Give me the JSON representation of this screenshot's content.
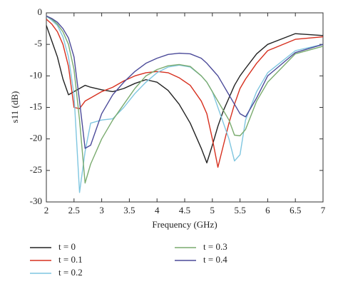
{
  "chart_data": {
    "type": "line",
    "xlabel": "Frequency (GHz)",
    "ylabel": "s11 (dB)",
    "x": [
      2,
      2.1,
      2.2,
      2.3,
      2.4,
      2.5,
      2.6,
      2.7,
      2.8,
      3,
      3.2,
      3.4,
      3.6,
      3.8,
      4,
      4.2,
      4.4,
      4.6,
      4.8,
      4.9,
      5,
      5.1,
      5.2,
      5.3,
      5.4,
      5.5,
      5.6,
      5.8,
      6,
      6.5,
      7
    ],
    "series": [
      {
        "name": "t = 0",
        "color": "#222222",
        "values": [
          -2,
          -4.5,
          -7,
          -10.5,
          -13,
          -12.5,
          -12,
          -11.5,
          -11.8,
          -12.2,
          -12.5,
          -12,
          -11.2,
          -10.6,
          -11,
          -12.3,
          -14.5,
          -17.5,
          -21.5,
          -23.8,
          -21,
          -18,
          -15.5,
          -13.5,
          -11.5,
          -10,
          -8.8,
          -6.5,
          -5,
          -3.3,
          -3.6
        ]
      },
      {
        "name": "t = 0.1",
        "color": "#d7301f",
        "values": [
          -1,
          -1.8,
          -3,
          -5,
          -8.5,
          -15,
          -15.2,
          -14,
          -13.5,
          -12.5,
          -11.8,
          -10.8,
          -10,
          -9.5,
          -9.3,
          -9.5,
          -10.3,
          -11.5,
          -14,
          -16,
          -20,
          -24.5,
          -21,
          -17.5,
          -14.5,
          -12,
          -10.5,
          -8,
          -6,
          -4.2,
          -3.8
        ]
      },
      {
        "name": "t = 0.2",
        "color": "#7fc6e0",
        "values": [
          -0.5,
          -1.2,
          -2,
          -3.8,
          -7,
          -13,
          -28.5,
          -22,
          -17.5,
          -17,
          -16.8,
          -15,
          -12.8,
          -11,
          -9.5,
          -8.6,
          -8.3,
          -8.6,
          -10,
          -11,
          -12.5,
          -15,
          -17.5,
          -20,
          -23.5,
          -22.5,
          -17,
          -12.5,
          -9.5,
          -6,
          -5
        ]
      },
      {
        "name": "t = 0.3",
        "color": "#7aab6e",
        "values": [
          -0.5,
          -1,
          -1.8,
          -3,
          -5,
          -9,
          -17,
          -27,
          -24,
          -20,
          -17,
          -14.5,
          -12,
          -10,
          -9,
          -8.4,
          -8.2,
          -8.5,
          -10,
          -11,
          -12.5,
          -14,
          -15.5,
          -17,
          -19.4,
          -19.5,
          -18.5,
          -14,
          -11,
          -6.5,
          -5.3
        ]
      },
      {
        "name": "t = 0.4",
        "color": "#4b4a99",
        "values": [
          -0.5,
          -0.9,
          -1.5,
          -2.5,
          -4,
          -7,
          -14,
          -21.5,
          -21,
          -16,
          -13,
          -11,
          -9.3,
          -8,
          -7.2,
          -6.6,
          -6.4,
          -6.5,
          -7.2,
          -8,
          -9,
          -10,
          -11.5,
          -13,
          -14.5,
          -16,
          -16.5,
          -13.5,
          -10,
          -6.3,
          -5
        ]
      }
    ],
    "xlim": [
      2,
      7
    ],
    "xticks": [
      2,
      2.5,
      3,
      3.5,
      4,
      4.5,
      5,
      5.5,
      6,
      6.5,
      7
    ],
    "ylim": [
      -30,
      0
    ],
    "yticks": [
      -30,
      -25,
      -20,
      -15,
      -10,
      -5,
      0
    ]
  }
}
